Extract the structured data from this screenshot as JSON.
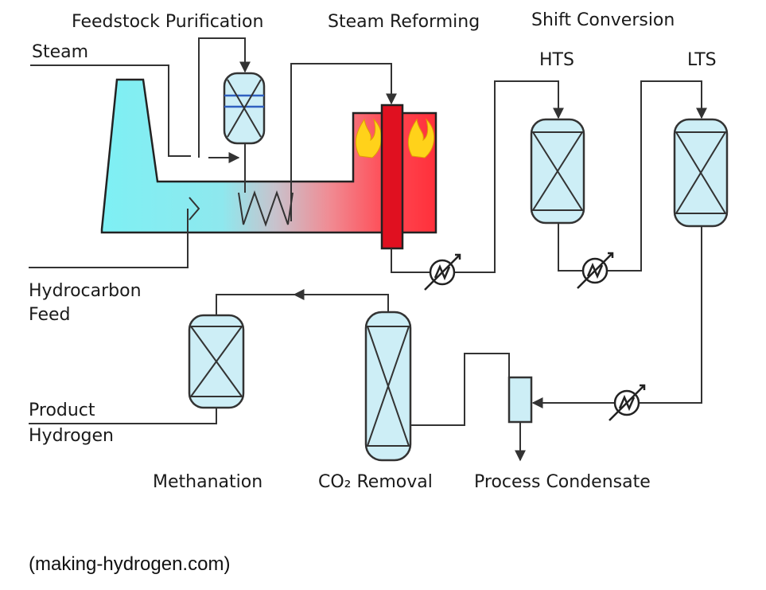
{
  "labels": {
    "feedstock_purification": "Feedstock Purification",
    "steam_reforming": "Steam Reforming",
    "shift_conversion": "Shift Conversion",
    "steam": "Steam",
    "hts": "HTS",
    "lts": "LTS",
    "hydrocarbon_line1": "Hydrocarbon",
    "hydrocarbon_line2": "Feed",
    "product_line1": "Product",
    "product_line2": "Hydrogen",
    "methanation": "Methanation",
    "co2_removal": "CO₂ Removal",
    "process_condensate": "Process Condensate"
  },
  "credit": "(making-hydrogen.com)",
  "colors": {
    "vessel_fill": "#cdeef6",
    "furnace_cyan": "#7ef0f4",
    "furnace_red": "#ff2f3a",
    "tube": "#e01020",
    "flame": "#ffd21a",
    "line": "#333333"
  }
}
